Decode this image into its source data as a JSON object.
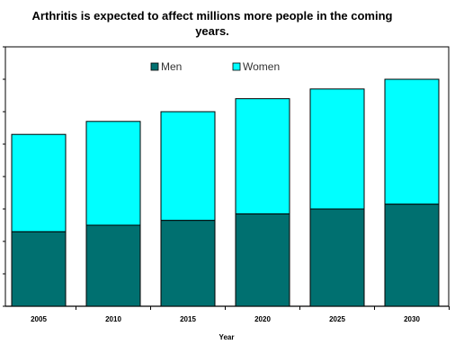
{
  "chart_data": {
    "type": "bar",
    "stacked": true,
    "title": "Arthritis is expected to affect millions more people in the coming years.",
    "title_lines": [
      "Arthritis is expected to affect millions more people in the coming",
      "years."
    ],
    "xlabel": "Year",
    "ylabel": "",
    "categories": [
      "2005",
      "2010",
      "2015",
      "2020",
      "2025",
      "2030"
    ],
    "series": [
      {
        "name": "Men",
        "color": "#007070",
        "values": [
          23.0,
          25.0,
          26.5,
          28.5,
          30.0,
          31.5
        ]
      },
      {
        "name": "Women",
        "color": "#00FFFF",
        "values": [
          30.0,
          32.0,
          33.5,
          35.5,
          37.0,
          38.5
        ]
      }
    ],
    "ylim": [
      0,
      80
    ],
    "y_gridlines": false,
    "y_tick_labels_visible": false,
    "legend_position": "top-center"
  }
}
